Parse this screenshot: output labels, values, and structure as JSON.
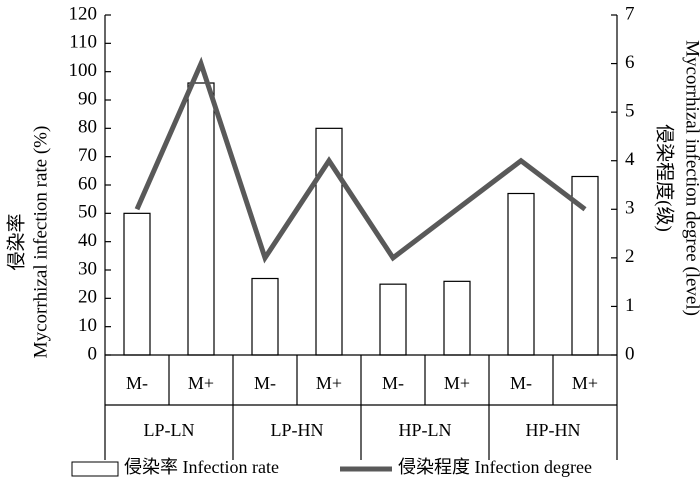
{
  "chart_data": {
    "type": "bar",
    "categories": [
      "M-",
      "M+",
      "M-",
      "M+",
      "M-",
      "M+",
      "M-",
      "M+"
    ],
    "groups": [
      "LP-LN",
      "LP-HN",
      "HP-LN",
      "HP-HN"
    ],
    "series": [
      {
        "name": "侵染率 Infection rate",
        "type": "bar",
        "axis": "left",
        "values": [
          50,
          96,
          27,
          80,
          25,
          26,
          57,
          63
        ]
      },
      {
        "name": "侵染程度 Infection degree",
        "type": "line",
        "axis": "right",
        "values": [
          3,
          6,
          2,
          4,
          2,
          3,
          4,
          3
        ]
      }
    ],
    "ylabel_left": [
      "侵染率",
      "Mycorrhizal infection rate (%)"
    ],
    "ylabel_right": [
      "侵染程度(级)",
      "Mycorrhizal infection degree (level)"
    ],
    "ylim_left": [
      0,
      120
    ],
    "yticks_left": [
      "0",
      "10",
      "20",
      "30",
      "40",
      "50",
      "60",
      "70",
      "80",
      "90",
      "100",
      "110",
      "120"
    ],
    "ylim_right": [
      0,
      7
    ],
    "yticks_right": [
      "0",
      "1",
      "2",
      "3",
      "4",
      "5",
      "6",
      "7"
    ],
    "grid": false,
    "legend_position": "bottom",
    "colors": {
      "bar_fill": "#ffffff",
      "bar_stroke": "#000000",
      "line": "#595959"
    }
  }
}
